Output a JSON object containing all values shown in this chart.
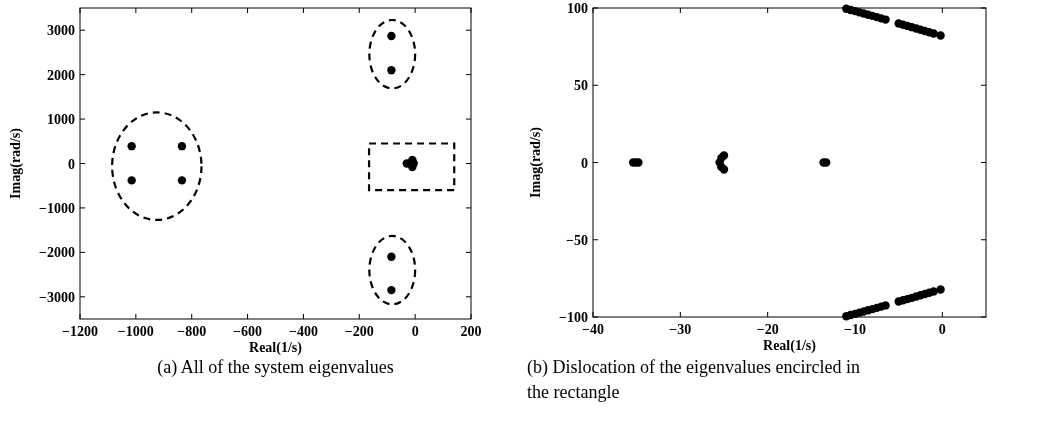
{
  "chart_data": [
    {
      "type": "scatter",
      "title": "(a) All of the system eigenvalues",
      "xlabel": "Real(1/s)",
      "ylabel": "Imag(rad/s)",
      "xlim": [
        -1200,
        200
      ],
      "ylim": [
        -3500,
        3500
      ],
      "xticks": [
        -1200,
        -1000,
        -800,
        -600,
        -400,
        -200,
        0,
        200
      ],
      "yticks": [
        -3000,
        -2000,
        -1000,
        0,
        1000,
        2000,
        3000
      ],
      "marker": "circle",
      "grid": false,
      "series": [
        {
          "color": "#000000",
          "x": [
            -1015,
            -835,
            -1015,
            -835,
            -85,
            -85,
            -85,
            -85,
            -30,
            -10,
            -10,
            -5
          ],
          "values": [
            390,
            390,
            -380,
            -380,
            2870,
            2100,
            -2100,
            -2850,
            0,
            80,
            -80,
            0
          ]
        }
      ]
    },
    {
      "type": "scatter",
      "title": "(b) Dislocation of the eigenvalues encircled in the rectangle",
      "xlabel": "Real(1/s)",
      "ylabel": "Imag(rad/s)",
      "xlim": [
        -40,
        5
      ],
      "ylim": [
        -100,
        100
      ],
      "xticks": [
        -40,
        -30,
        -20,
        -10,
        0
      ],
      "yticks": [
        -100,
        -50,
        0,
        50,
        100
      ],
      "marker": "circle",
      "grid": false,
      "series": [
        {
          "color": "#000000",
          "x": [
            -35.4,
            -35.1,
            -34.8,
            -25.0,
            -25.3,
            -25.5,
            -25.3,
            -25.0,
            -13.6,
            -13.3,
            -11,
            -10.5,
            -10,
            -9.5,
            -9,
            -8.5,
            -8,
            -7.5,
            -7,
            -6.5,
            -5,
            -4.5,
            -4,
            -3.5,
            -3,
            -2.5,
            -2,
            -1.5,
            -1,
            -0.2,
            -11,
            -10.5,
            -10,
            -9.5,
            -9,
            -8.5,
            -8,
            -7.5,
            -7,
            -6.5,
            -5,
            -4.5,
            -4,
            -3.5,
            -3,
            -2.5,
            -2,
            -1.5,
            -1,
            -0.2
          ],
          "values": [
            0,
            0,
            0,
            4.5,
            3,
            0,
            -3,
            -4.5,
            0,
            0,
            99.5,
            98.7,
            98,
            97.2,
            96.4,
            95.6,
            94.9,
            94.1,
            93.3,
            92.5,
            90,
            89.2,
            88.4,
            87.6,
            86.7,
            85.9,
            85.1,
            84.3,
            83.5,
            82.2,
            -99.5,
            -98.7,
            -98,
            -97.2,
            -96.4,
            -95.6,
            -94.9,
            -94.1,
            -93.3,
            -92.5,
            -90,
            -89.2,
            -88.4,
            -87.6,
            -86.7,
            -85.9,
            -85.1,
            -84.3,
            -83.5,
            -82.2
          ]
        }
      ]
    }
  ]
}
